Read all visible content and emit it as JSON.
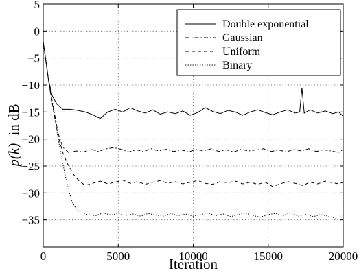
{
  "chart_data": {
    "type": "line",
    "xlabel": "Iteration",
    "ylabel": "p(k) in dB",
    "ylabel_parts": {
      "func": "p(k)",
      "unit": "in dB"
    },
    "xlim": [
      0,
      20000
    ],
    "ylim": [
      -40,
      5
    ],
    "xticks": [
      0,
      5000,
      10000,
      15000,
      20000
    ],
    "yticks": [
      5,
      0,
      -5,
      -10,
      -15,
      -20,
      -25,
      -30,
      -35
    ],
    "xtick_labels": [
      "0",
      "5000",
      "10000",
      "15000",
      "20000"
    ],
    "ytick_labels": [
      "5",
      "0",
      "−5",
      "−10",
      "−15",
      "−20",
      "−25",
      "−30",
      "−35"
    ],
    "grid": true,
    "legend_position": "top-right",
    "series": [
      {
        "name": "Double exponential",
        "dash": "solid",
        "color": "#000000",
        "points": [
          [
            0,
            -2
          ],
          [
            150,
            -5
          ],
          [
            350,
            -9
          ],
          [
            600,
            -12
          ],
          [
            900,
            -13.5
          ],
          [
            1300,
            -14.5
          ],
          [
            1800,
            -14.5
          ],
          [
            2300,
            -14.7
          ],
          [
            2800,
            -15
          ],
          [
            3300,
            -15.5
          ],
          [
            3800,
            -16.2
          ],
          [
            4300,
            -15
          ],
          [
            4800,
            -14.5
          ],
          [
            5300,
            -15
          ],
          [
            5800,
            -14.2
          ],
          [
            6300,
            -14.8
          ],
          [
            6800,
            -15.2
          ],
          [
            7300,
            -14.6
          ],
          [
            7800,
            -15.4
          ],
          [
            8300,
            -15
          ],
          [
            8800,
            -15.3
          ],
          [
            9300,
            -14.8
          ],
          [
            9800,
            -15.6
          ],
          [
            10300,
            -15.1
          ],
          [
            10800,
            -14.2
          ],
          [
            11300,
            -14.9
          ],
          [
            11800,
            -15.3
          ],
          [
            12300,
            -14.7
          ],
          [
            12800,
            -15
          ],
          [
            13300,
            -15.6
          ],
          [
            13800,
            -15
          ],
          [
            14300,
            -14.6
          ],
          [
            14800,
            -15.1
          ],
          [
            15300,
            -15.5
          ],
          [
            15800,
            -15
          ],
          [
            16300,
            -14.6
          ],
          [
            16800,
            -15.2
          ],
          [
            17100,
            -15
          ],
          [
            17250,
            -10.5
          ],
          [
            17400,
            -15.2
          ],
          [
            17800,
            -14.6
          ],
          [
            18300,
            -15.2
          ],
          [
            18800,
            -14.8
          ],
          [
            19300,
            -15.3
          ],
          [
            19700,
            -15
          ],
          [
            20000,
            -15.8
          ]
        ]
      },
      {
        "name": "Gaussian",
        "dash": "dashdot",
        "color": "#000000",
        "points": [
          [
            0,
            -2
          ],
          [
            200,
            -6
          ],
          [
            400,
            -10
          ],
          [
            700,
            -14.5
          ],
          [
            1000,
            -19
          ],
          [
            1300,
            -21.5
          ],
          [
            1700,
            -22.5
          ],
          [
            2200,
            -22.2
          ],
          [
            2700,
            -22.4
          ],
          [
            3200,
            -21.9
          ],
          [
            3700,
            -22.3
          ],
          [
            4200,
            -21.8
          ],
          [
            4700,
            -21.6
          ],
          [
            5200,
            -21.9
          ],
          [
            5700,
            -22.4
          ],
          [
            6200,
            -22
          ],
          [
            6700,
            -22.3
          ],
          [
            7200,
            -21.8
          ],
          [
            7700,
            -22.2
          ],
          [
            8200,
            -21.9
          ],
          [
            8700,
            -22.3
          ],
          [
            9200,
            -22
          ],
          [
            9700,
            -22.4
          ],
          [
            10200,
            -21.9
          ],
          [
            10700,
            -22.2
          ],
          [
            11200,
            -21.8
          ],
          [
            11700,
            -22.3
          ],
          [
            12200,
            -22
          ],
          [
            12700,
            -22.4
          ],
          [
            13200,
            -21.9
          ],
          [
            13700,
            -22.2
          ],
          [
            14200,
            -22
          ],
          [
            14700,
            -21.8
          ],
          [
            15200,
            -22.3
          ],
          [
            15700,
            -22
          ],
          [
            16200,
            -22.4
          ],
          [
            16700,
            -21.9
          ],
          [
            17200,
            -22.2
          ],
          [
            17700,
            -21.8
          ],
          [
            18200,
            -22.3
          ],
          [
            18700,
            -22
          ],
          [
            19200,
            -22.2
          ],
          [
            19700,
            -22.5
          ],
          [
            20000,
            -21.9
          ]
        ]
      },
      {
        "name": "Uniform",
        "dash": "dashed",
        "color": "#000000",
        "points": [
          [
            0,
            -2
          ],
          [
            200,
            -6
          ],
          [
            400,
            -10
          ],
          [
            700,
            -15
          ],
          [
            1000,
            -19.5
          ],
          [
            1300,
            -22.5
          ],
          [
            1600,
            -24.5
          ],
          [
            2000,
            -26.5
          ],
          [
            2400,
            -27.8
          ],
          [
            2800,
            -28.6
          ],
          [
            3300,
            -28.2
          ],
          [
            3800,
            -27.8
          ],
          [
            4300,
            -28.3
          ],
          [
            4800,
            -28
          ],
          [
            5300,
            -27.6
          ],
          [
            5800,
            -28.2
          ],
          [
            6300,
            -27.9
          ],
          [
            6800,
            -28.4
          ],
          [
            7300,
            -28
          ],
          [
            7800,
            -27.7
          ],
          [
            8300,
            -28.2
          ],
          [
            8800,
            -27.9
          ],
          [
            9300,
            -28.3
          ],
          [
            9800,
            -28
          ],
          [
            10300,
            -27.7
          ],
          [
            10800,
            -28.2
          ],
          [
            11300,
            -28.4
          ],
          [
            11800,
            -27.9
          ],
          [
            12300,
            -28.1
          ],
          [
            12800,
            -27.8
          ],
          [
            13300,
            -28.3
          ],
          [
            13800,
            -28
          ],
          [
            14300,
            -28.4
          ],
          [
            14800,
            -28
          ],
          [
            15300,
            -28.8
          ],
          [
            15800,
            -28.3
          ],
          [
            16300,
            -27.9
          ],
          [
            16800,
            -28.2
          ],
          [
            17300,
            -28.6
          ],
          [
            17800,
            -28
          ],
          [
            18300,
            -28.3
          ],
          [
            18800,
            -27.8
          ],
          [
            19300,
            -28.1
          ],
          [
            19700,
            -28.3
          ],
          [
            20000,
            -28
          ]
        ]
      },
      {
        "name": "Binary",
        "dash": "dotted",
        "color": "#000000",
        "points": [
          [
            0,
            -2
          ],
          [
            200,
            -6
          ],
          [
            400,
            -10
          ],
          [
            700,
            -15
          ],
          [
            1000,
            -20
          ],
          [
            1300,
            -24.5
          ],
          [
            1600,
            -28.5
          ],
          [
            1900,
            -31.5
          ],
          [
            2200,
            -33
          ],
          [
            2600,
            -33.8
          ],
          [
            3000,
            -34
          ],
          [
            3500,
            -34.2
          ],
          [
            4000,
            -33.7
          ],
          [
            4500,
            -34.1
          ],
          [
            5000,
            -33.8
          ],
          [
            5500,
            -34.2
          ],
          [
            6000,
            -33.9
          ],
          [
            6500,
            -34.3
          ],
          [
            7000,
            -33.8
          ],
          [
            7500,
            -34.1
          ],
          [
            8000,
            -34.3
          ],
          [
            8500,
            -33.8
          ],
          [
            9000,
            -34.2
          ],
          [
            9500,
            -33.9
          ],
          [
            10000,
            -34.3
          ],
          [
            10500,
            -34
          ],
          [
            11000,
            -33.7
          ],
          [
            11500,
            -34.2
          ],
          [
            12000,
            -33.9
          ],
          [
            12500,
            -34.4
          ],
          [
            13000,
            -34
          ],
          [
            13500,
            -33.7
          ],
          [
            14000,
            -34.2
          ],
          [
            14500,
            -34.5
          ],
          [
            15000,
            -34
          ],
          [
            15500,
            -33.8
          ],
          [
            16000,
            -34.2
          ],
          [
            16500,
            -33.6
          ],
          [
            17000,
            -34.3
          ],
          [
            17500,
            -34
          ],
          [
            18000,
            -34.4
          ],
          [
            18500,
            -34
          ],
          [
            19000,
            -34.3
          ],
          [
            19500,
            -34.7
          ],
          [
            20000,
            -34
          ]
        ]
      }
    ]
  }
}
